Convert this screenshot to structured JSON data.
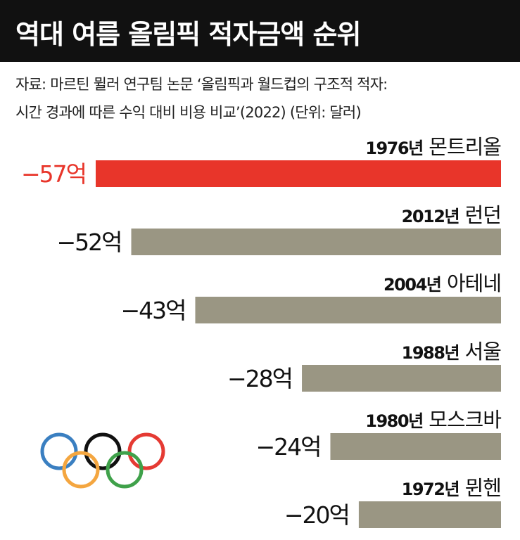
{
  "header": {
    "title": "역대 여름 올림픽 적자금액 순위"
  },
  "source": {
    "line1": "자료: 마르틴 뮐러 연구팀 논문 ‘올림픽과 월드컵의 구조적 적자:",
    "line2": "시간 경과에 따른 수익 대비 비용 비교’(2022)  (단위: 달러)"
  },
  "colors": {
    "highlight": "#E8352A",
    "bar": "#9A9683",
    "title_bg": "#111111",
    "ring_blue": "#3A7FC1",
    "ring_yellow": "#F4A640",
    "ring_black": "#111111",
    "ring_green": "#3FA14A",
    "ring_red": "#E53A33"
  },
  "chart_data": {
    "type": "bar",
    "orientation": "horizontal",
    "unit": "억 달러",
    "categories": [
      "1976년 몬트리올",
      "2012년 런던",
      "2004년 아테네",
      "1988년 서울",
      "1980년 모스크바",
      "1972년 뮌헨"
    ],
    "years": [
      "1976년",
      "2012년",
      "2004년",
      "1988년",
      "1980년",
      "1972년"
    ],
    "cities": [
      "몬트리올",
      "런던",
      "아테네",
      "서울",
      "모스크바",
      "뮌헨"
    ],
    "values": [
      -57,
      -52,
      -43,
      -28,
      -24,
      -20
    ],
    "value_labels": [
      "−57억",
      "−52억",
      "−43억",
      "−28억",
      "−24억",
      "−20억"
    ],
    "highlight_index": 0,
    "xlim": [
      -57,
      0
    ],
    "grid": false,
    "legend": "none"
  },
  "decoration": {
    "logo": "olympic-rings-icon"
  }
}
